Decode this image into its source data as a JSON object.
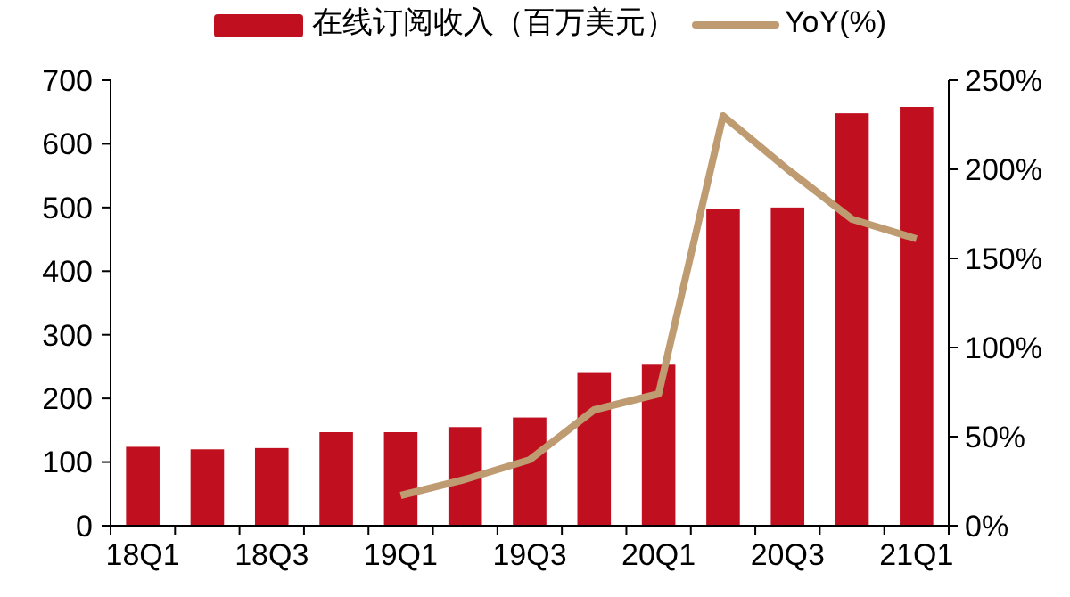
{
  "chart_data": {
    "type": "bar",
    "categories": [
      "18Q1",
      null,
      "18Q3",
      null,
      "19Q1",
      null,
      "19Q3",
      null,
      "20Q1",
      null,
      "20Q3",
      null,
      "21Q1"
    ],
    "series": [
      {
        "name": "在线订阅收入（百万美元）",
        "color": "#c00f1e",
        "values": [
          124,
          120,
          122,
          147,
          147,
          155,
          170,
          240,
          253,
          498,
          500,
          648,
          658
        ]
      },
      {
        "name": "YoY(%)",
        "type": "line",
        "axis": "y2",
        "color": "#bf9b72",
        "values": [
          null,
          null,
          null,
          null,
          17,
          26,
          37,
          65,
          74,
          230,
          200,
          172,
          161
        ]
      }
    ],
    "ylim": [
      0,
      700
    ],
    "yticks": [
      0,
      100,
      200,
      300,
      400,
      500,
      600,
      700
    ],
    "y2lim": [
      0,
      250
    ],
    "y2ticks": [
      {
        "value": 0,
        "label": "0%"
      },
      {
        "value": 50,
        "label": "50%"
      },
      {
        "value": 100,
        "label": "100%"
      },
      {
        "value": 150,
        "label": "150%"
      },
      {
        "value": 200,
        "label": "200%"
      },
      {
        "value": 250,
        "label": "250%"
      }
    ],
    "legend": "top",
    "grid": false,
    "marker": "none",
    "line_style": "solid"
  }
}
